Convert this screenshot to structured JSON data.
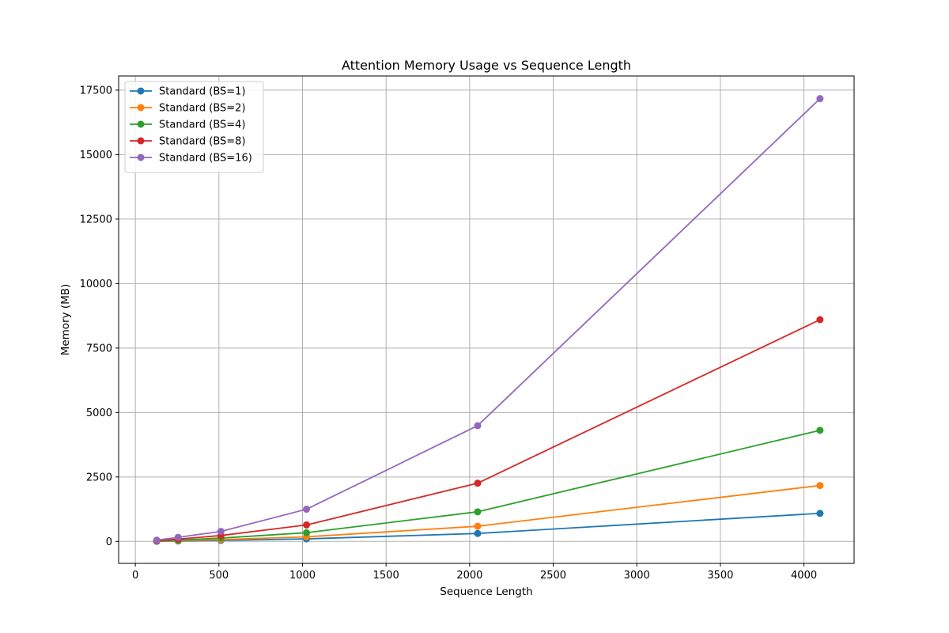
{
  "chart_data": {
    "type": "line",
    "title": "Attention Memory Usage vs Sequence Length",
    "xlabel": "Sequence Length",
    "ylabel": "Memory (MB)",
    "xlim": [
      -100,
      4300
    ],
    "ylim": [
      -850,
      18050
    ],
    "xticks": [
      0,
      500,
      1000,
      1500,
      2000,
      2500,
      3000,
      3500,
      4000
    ],
    "yticks": [
      0,
      2500,
      5000,
      7500,
      10000,
      12500,
      15000,
      17500
    ],
    "grid": true,
    "legend_position": "upper-left",
    "x": [
      128,
      256,
      512,
      1024,
      2048,
      4096
    ],
    "series": [
      {
        "name": "Standard (BS=1)",
        "color": "#1f77b4",
        "values": [
          5,
          15,
          40,
          100,
          310,
          1090
        ]
      },
      {
        "name": "Standard (BS=2)",
        "color": "#ff7f0e",
        "values": [
          10,
          30,
          70,
          180,
          590,
          2170
        ]
      },
      {
        "name": "Standard (BS=4)",
        "color": "#2ca02c",
        "values": [
          20,
          50,
          130,
          340,
          1150,
          4310
        ]
      },
      {
        "name": "Standard (BS=8)",
        "color": "#d62728",
        "values": [
          30,
          90,
          230,
          640,
          2260,
          8600
        ]
      },
      {
        "name": "Standard (BS=16)",
        "color": "#9467bd",
        "values": [
          50,
          160,
          390,
          1250,
          4490,
          17170
        ]
      }
    ]
  }
}
